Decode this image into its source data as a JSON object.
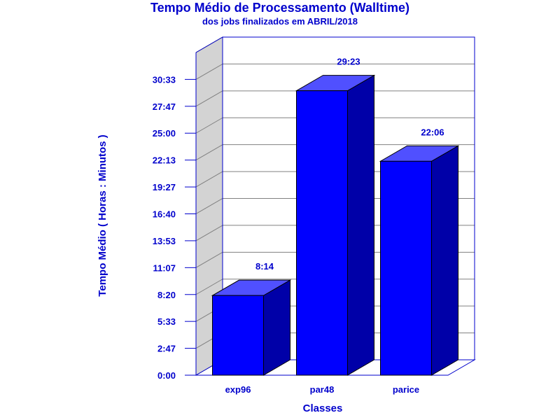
{
  "chart_data": {
    "type": "bar",
    "title": "Tempo Médio de Processamento (Walltime)",
    "subtitle": "dos jobs finalizados em ABRIL/2018",
    "xlabel": "Classes",
    "ylabel": "Tempo Médio ( Horas : Minutos )",
    "categories": [
      "exp96",
      "par48",
      "parice"
    ],
    "values": [
      8.233,
      29.383,
      22.1
    ],
    "value_labels": [
      "8:14",
      "29:23",
      "22:06"
    ],
    "ylim": [
      0,
      33.333
    ],
    "yticks": [
      0,
      2.778,
      5.556,
      8.333,
      11.111,
      13.889,
      16.667,
      19.444,
      22.222,
      25.0,
      27.778,
      30.556
    ],
    "ytick_labels": [
      "0:00",
      "2:47",
      "5:33",
      "8:20",
      "11:07",
      "13:53",
      "16:40",
      "19:27",
      "22:13",
      "25:00",
      "27:47",
      "30:33"
    ],
    "grid": true,
    "style": "3d",
    "colors": {
      "bar_front": "#0000ff",
      "bar_top": "#5050ff",
      "bar_side": "#0000a8",
      "text": "#0000cc",
      "axes": "#0000cc",
      "grid": "#808080",
      "side_wall": "#d3d3d3"
    }
  }
}
